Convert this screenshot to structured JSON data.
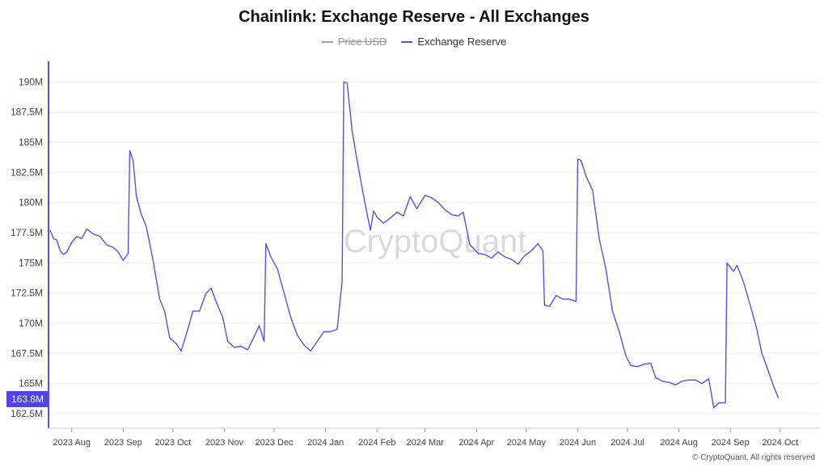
{
  "chart_data": {
    "type": "line",
    "title": "Chainlink: Exchange Reserve - All Exchanges",
    "legend": [
      {
        "name": "Price USD",
        "color": "#9ca3af",
        "hidden": true
      },
      {
        "name": "Exchange Reserve",
        "color": "#5b4fe0",
        "hidden": false
      }
    ],
    "ylim": [
      161.3,
      191.7
    ],
    "yticks": [
      {
        "v": 190,
        "label": "190M"
      },
      {
        "v": 187.5,
        "label": "187.5M"
      },
      {
        "v": 185,
        "label": "185M"
      },
      {
        "v": 182.5,
        "label": "182.5M"
      },
      {
        "v": 180,
        "label": "180M"
      },
      {
        "v": 177.5,
        "label": "177.5M"
      },
      {
        "v": 175,
        "label": "175M"
      },
      {
        "v": 172.5,
        "label": "172.5M"
      },
      {
        "v": 170,
        "label": "170M"
      },
      {
        "v": 167.5,
        "label": "167.5M"
      },
      {
        "v": 165,
        "label": "165M"
      },
      {
        "v": 162.5,
        "label": "162.5M"
      }
    ],
    "xticks": [
      {
        "date": "2023-08-01",
        "label": "2023 Aug"
      },
      {
        "date": "2023-09-01",
        "label": "2023 Sep"
      },
      {
        "date": "2023-10-01",
        "label": "2023 Oct"
      },
      {
        "date": "2023-11-01",
        "label": "2023 Nov"
      },
      {
        "date": "2023-12-01",
        "label": "2023 Dec"
      },
      {
        "date": "2024-01-01",
        "label": "2024 Jan"
      },
      {
        "date": "2024-02-01",
        "label": "2024 Feb"
      },
      {
        "date": "2024-03-01",
        "label": "2024 Mar"
      },
      {
        "date": "2024-04-01",
        "label": "2024 Apr"
      },
      {
        "date": "2024-05-01",
        "label": "2024 May"
      },
      {
        "date": "2024-06-01",
        "label": "2024 Jun"
      },
      {
        "date": "2024-07-01",
        "label": "2024 Jul"
      },
      {
        "date": "2024-08-01",
        "label": "2024 Aug"
      },
      {
        "date": "2024-09-01",
        "label": "2024 Sep"
      },
      {
        "date": "2024-10-01",
        "label": "2024 Oct"
      }
    ],
    "xlim": [
      "2023-07-18",
      "2024-10-25"
    ],
    "current_value_label": "163.8M",
    "grid": true,
    "series": [
      {
        "name": "Exchange Reserve",
        "points": [
          [
            "2023-07-19",
            177.7
          ],
          [
            "2023-07-21",
            177.0
          ],
          [
            "2023-07-23",
            176.9
          ],
          [
            "2023-07-25",
            176.0
          ],
          [
            "2023-07-27",
            175.7
          ],
          [
            "2023-07-29",
            175.9
          ],
          [
            "2023-08-01",
            176.7
          ],
          [
            "2023-08-04",
            177.2
          ],
          [
            "2023-08-07",
            177.0
          ],
          [
            "2023-08-10",
            177.8
          ],
          [
            "2023-08-14",
            177.4
          ],
          [
            "2023-08-18",
            177.2
          ],
          [
            "2023-08-22",
            176.5
          ],
          [
            "2023-08-26",
            176.3
          ],
          [
            "2023-08-29",
            175.9
          ],
          [
            "2023-09-01",
            175.2
          ],
          [
            "2023-09-04",
            175.8
          ],
          [
            "2023-09-05",
            184.3
          ],
          [
            "2023-09-07",
            183.5
          ],
          [
            "2023-09-09",
            180.5
          ],
          [
            "2023-09-12",
            179.0
          ],
          [
            "2023-09-15",
            178.0
          ],
          [
            "2023-09-19",
            175.2
          ],
          [
            "2023-09-23",
            172.0
          ],
          [
            "2023-09-26",
            171.0
          ],
          [
            "2023-09-29",
            168.8
          ],
          [
            "2023-10-03",
            168.3
          ],
          [
            "2023-10-06",
            167.7
          ],
          [
            "2023-10-10",
            169.5
          ],
          [
            "2023-10-13",
            171.0
          ],
          [
            "2023-10-17",
            171.0
          ],
          [
            "2023-10-21",
            172.5
          ],
          [
            "2023-10-24",
            172.9
          ],
          [
            "2023-10-27",
            171.8
          ],
          [
            "2023-10-31",
            170.5
          ],
          [
            "2023-11-03",
            168.5
          ],
          [
            "2023-11-07",
            168.0
          ],
          [
            "2023-11-11",
            168.1
          ],
          [
            "2023-11-15",
            167.8
          ],
          [
            "2023-11-18",
            168.6
          ],
          [
            "2023-11-22",
            169.8
          ],
          [
            "2023-11-25",
            168.5
          ],
          [
            "2023-11-26",
            176.6
          ],
          [
            "2023-11-29",
            175.5
          ],
          [
            "2023-12-03",
            174.5
          ],
          [
            "2023-12-07",
            172.5
          ],
          [
            "2023-12-11",
            170.5
          ],
          [
            "2023-12-15",
            169.0
          ],
          [
            "2023-12-19",
            168.2
          ],
          [
            "2023-12-23",
            167.7
          ],
          [
            "2023-12-27",
            168.5
          ],
          [
            "2023-12-31",
            169.3
          ],
          [
            "2024-01-04",
            169.3
          ],
          [
            "2024-01-08",
            169.5
          ],
          [
            "2024-01-11",
            173.5
          ],
          [
            "2024-01-12",
            190.0
          ],
          [
            "2024-01-14",
            189.9
          ],
          [
            "2024-01-17",
            186.0
          ],
          [
            "2024-01-20",
            183.5
          ],
          [
            "2024-01-24",
            180.5
          ],
          [
            "2024-01-28",
            177.7
          ],
          [
            "2024-01-30",
            179.3
          ],
          [
            "2024-02-01",
            178.8
          ],
          [
            "2024-02-05",
            178.3
          ],
          [
            "2024-02-09",
            178.7
          ],
          [
            "2024-02-13",
            179.2
          ],
          [
            "2024-02-17",
            178.9
          ],
          [
            "2024-02-21",
            180.5
          ],
          [
            "2024-02-25",
            179.5
          ],
          [
            "2024-03-01",
            180.6
          ],
          [
            "2024-03-05",
            180.4
          ],
          [
            "2024-03-09",
            180.0
          ],
          [
            "2024-03-13",
            179.4
          ],
          [
            "2024-03-17",
            179.0
          ],
          [
            "2024-03-21",
            178.9
          ],
          [
            "2024-03-24",
            179.2
          ],
          [
            "2024-03-28",
            176.5
          ],
          [
            "2024-04-02",
            175.8
          ],
          [
            "2024-04-06",
            175.7
          ],
          [
            "2024-04-10",
            175.4
          ],
          [
            "2024-04-14",
            175.9
          ],
          [
            "2024-04-18",
            175.5
          ],
          [
            "2024-04-22",
            175.3
          ],
          [
            "2024-04-26",
            174.9
          ],
          [
            "2024-04-30",
            175.6
          ],
          [
            "2024-05-04",
            176.0
          ],
          [
            "2024-05-08",
            176.6
          ],
          [
            "2024-05-11",
            176.0
          ],
          [
            "2024-05-12",
            171.5
          ],
          [
            "2024-05-15",
            171.4
          ],
          [
            "2024-05-19",
            172.3
          ],
          [
            "2024-05-23",
            172.0
          ],
          [
            "2024-05-27",
            172.0
          ],
          [
            "2024-05-31",
            171.8
          ],
          [
            "2024-06-01",
            183.6
          ],
          [
            "2024-06-03",
            183.5
          ],
          [
            "2024-06-06",
            182.2
          ],
          [
            "2024-06-10",
            181.0
          ],
          [
            "2024-06-14",
            177.0
          ],
          [
            "2024-06-18",
            174.5
          ],
          [
            "2024-06-22",
            171.0
          ],
          [
            "2024-06-26",
            169.3
          ],
          [
            "2024-06-30",
            167.3
          ],
          [
            "2024-07-03",
            166.5
          ],
          [
            "2024-07-07",
            166.4
          ],
          [
            "2024-07-11",
            166.6
          ],
          [
            "2024-07-15",
            166.7
          ],
          [
            "2024-07-18",
            165.5
          ],
          [
            "2024-07-22",
            165.2
          ],
          [
            "2024-07-26",
            165.1
          ],
          [
            "2024-07-30",
            164.9
          ],
          [
            "2024-08-03",
            165.2
          ],
          [
            "2024-08-07",
            165.3
          ],
          [
            "2024-08-11",
            165.3
          ],
          [
            "2024-08-15",
            165.0
          ],
          [
            "2024-08-19",
            165.4
          ],
          [
            "2024-08-22",
            163.0
          ],
          [
            "2024-08-25",
            163.4
          ],
          [
            "2024-08-29",
            163.4
          ],
          [
            "2024-08-30",
            175.0
          ],
          [
            "2024-09-03",
            174.3
          ],
          [
            "2024-09-05",
            174.8
          ],
          [
            "2024-09-09",
            173.4
          ],
          [
            "2024-09-13",
            171.5
          ],
          [
            "2024-09-17",
            169.5
          ],
          [
            "2024-09-20",
            167.5
          ],
          [
            "2024-09-24",
            166.0
          ],
          [
            "2024-09-27",
            164.8
          ],
          [
            "2024-09-30",
            163.8
          ]
        ]
      }
    ]
  },
  "footer": "© CryptoQuant. All rights reserved"
}
